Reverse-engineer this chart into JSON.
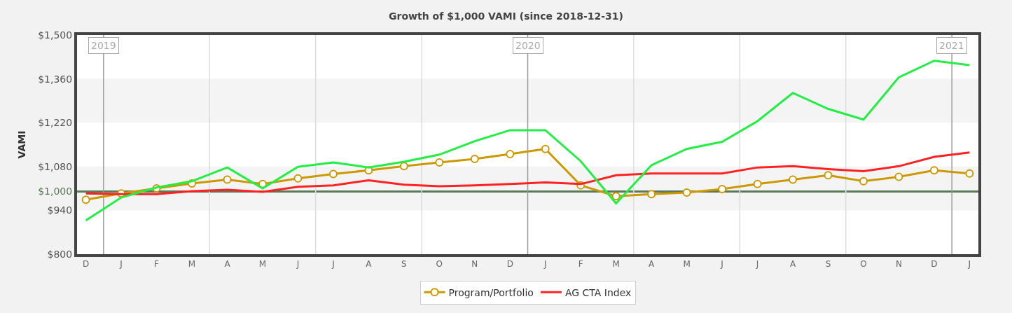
{
  "chart_data": {
    "type": "line",
    "title": "Growth of $1,000 VAMI (since 2018-12-31)",
    "ylabel": "VAMI",
    "categories": [
      "D",
      "J",
      "F",
      "M",
      "A",
      "M",
      "J",
      "J",
      "A",
      "S",
      "O",
      "N",
      "D",
      "J",
      "F",
      "M",
      "A",
      "M",
      "J",
      "J",
      "A",
      "S",
      "O",
      "N",
      "D",
      "J"
    ],
    "series": [
      {
        "name": "Program/Portfolio",
        "color": "#cc9900",
        "marker": "circle",
        "values": [
          974,
          994,
          1010,
          1026,
          1038,
          1024,
          1042,
          1056,
          1068,
          1081,
          1093,
          1104,
          1120,
          1136,
          1020,
          985,
          992,
          997,
          1008,
          1024,
          1038,
          1052,
          1033,
          1047,
          1068,
          1058
        ]
      },
      {
        "name": "AG CTA Index",
        "color": "#ff2222",
        "marker": "none",
        "values": [
          994,
          992,
          992,
          1001,
          1006,
          999,
          1015,
          1020,
          1036,
          1022,
          1017,
          1020,
          1024,
          1029,
          1024,
          1052,
          1058,
          1058,
          1058,
          1077,
          1081,
          1072,
          1065,
          1081,
          1111,
          1125
        ]
      },
      {
        "color": "#22ee44",
        "marker": "none",
        "values": [
          908,
          981,
          1013,
          1033,
          1077,
          1010,
          1079,
          1093,
          1077,
          1095,
          1118,
          1161,
          1196,
          1196,
          1097,
          962,
          1084,
          1136,
          1159,
          1225,
          1315,
          1264,
          1230,
          1365,
          1418,
          1404
        ]
      }
    ],
    "ylim": [
      800,
      1500
    ],
    "yticks": [
      {
        "value": 800,
        "label": "$800"
      },
      {
        "value": 940,
        "label": "$940"
      },
      {
        "value": 1000,
        "label": "$1,000"
      },
      {
        "value": 1080,
        "label": "$1,080"
      },
      {
        "value": 1220,
        "label": "$1,220"
      },
      {
        "value": 1360,
        "label": "$1,360"
      },
      {
        "value": 1500,
        "label": "$1,500"
      }
    ],
    "ref_lines": [
      {
        "axis": "y",
        "value": 1000,
        "color": "#5a7a5a"
      }
    ],
    "annotations": [
      "2019",
      "2020",
      "2021"
    ],
    "bands": [
      {
        "axis": "y",
        "from": 940,
        "to": 1080,
        "color": "#f4f4f4"
      },
      {
        "axis": "y",
        "from": 1220,
        "to": 1360,
        "color": "#f4f4f4"
      }
    ],
    "grid": false,
    "legend": "bottom",
    "line_style": "solid"
  }
}
